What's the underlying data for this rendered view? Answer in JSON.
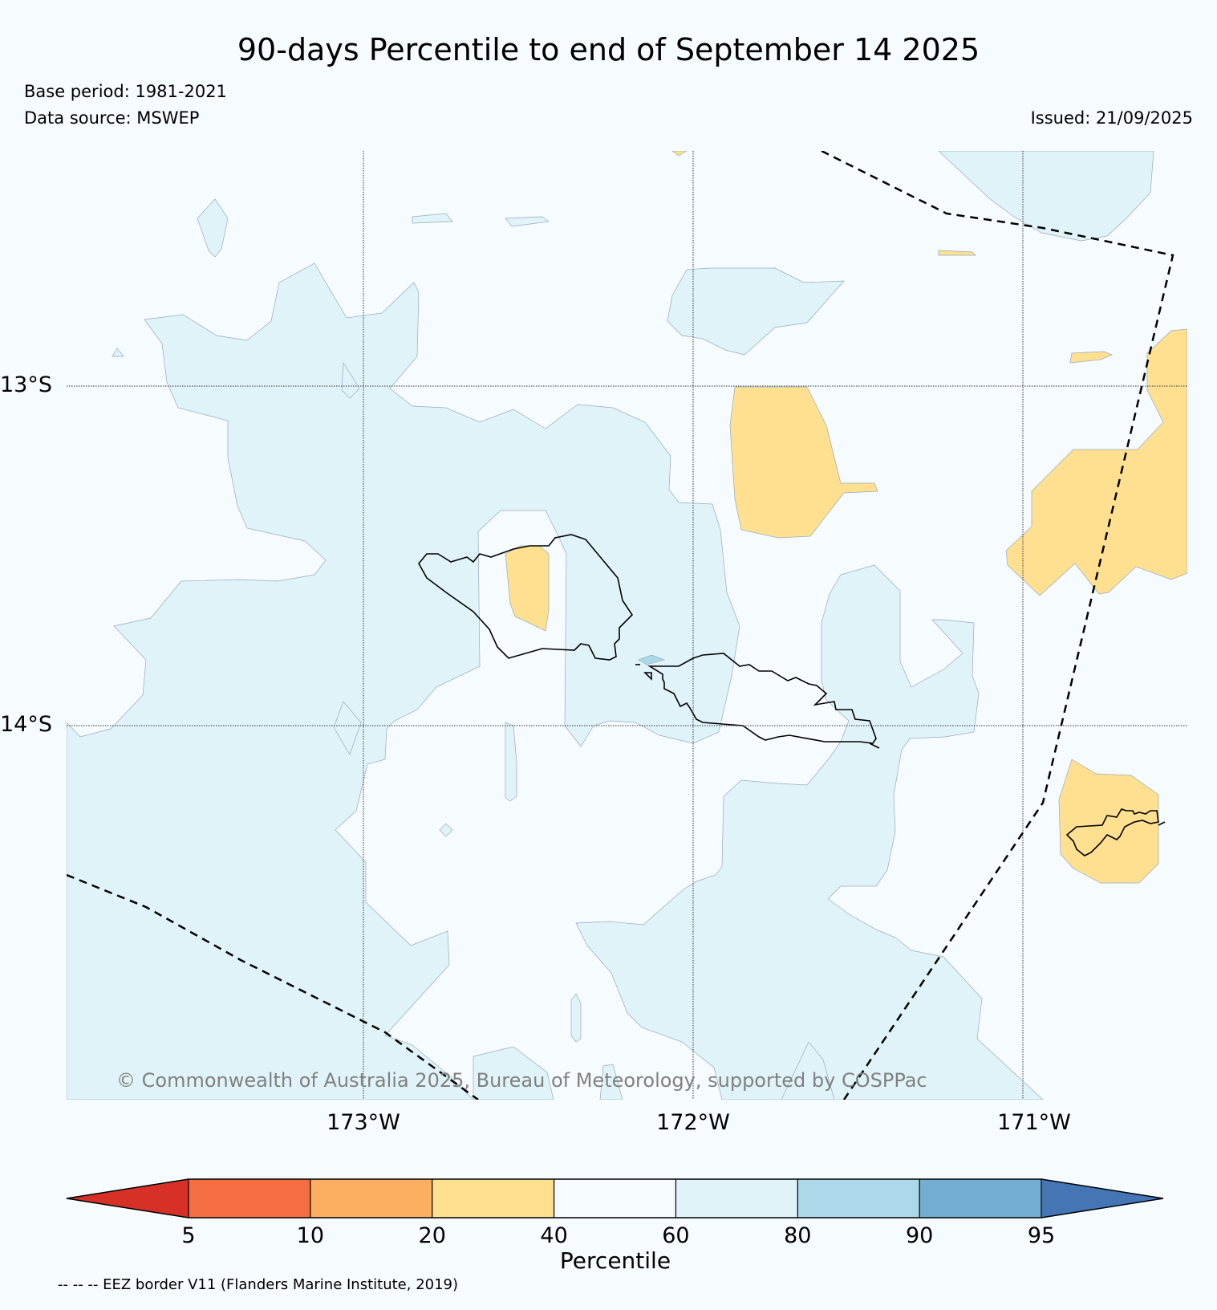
{
  "title": "90-days Percentile to end of September 14 2025",
  "base_period": "Base period: 1981-2021",
  "data_source": "Data source: MSWEP",
  "issued": "Issued: 21/09/2025",
  "copyright": "© Commonwealth of Australia 2025, Bureau of Meteorology, supported by COSPPac",
  "footnote": "-- -- -- EEZ border V11 (Flanders Marine Institute, 2019)",
  "grid": {
    "latitudes": [
      "13°S",
      "14°S"
    ],
    "longitudes": [
      "173°W",
      "172°W",
      "171°W"
    ]
  },
  "colorbar": {
    "label": "Percentile",
    "ticks": [
      "5",
      "10",
      "20",
      "40",
      "60",
      "80",
      "90",
      "95"
    ],
    "colors": [
      "#d73027",
      "#f46d43",
      "#fdae61",
      "#fee090",
      "#f5fbfe",
      "#e0f3f8",
      "#abd9e9",
      "#74add1",
      "#4575b4"
    ]
  },
  "colors": {
    "below_normal_20_40": "#fee090",
    "normal_40_60": "#f5fbfe",
    "above_normal_60_80": "#e0f3f8",
    "above_normal_80_90": "#abd9e9"
  }
}
